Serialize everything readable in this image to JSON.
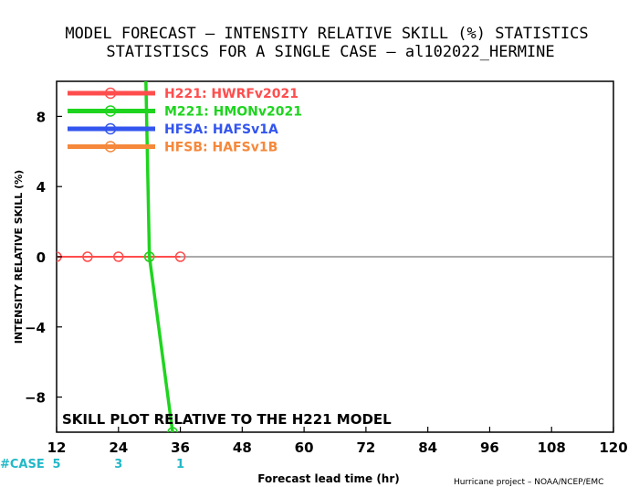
{
  "chart_data": {
    "type": "line",
    "title": "MODEL FORECAST – INTENSITY RELATIVE SKILL (%) STATISTICS",
    "subtitle": "STATISTISCS FOR A SINGLE CASE – al102022_HERMINE",
    "xlabel": "Forecast lead time (hr)",
    "ylabel": "INTENSITY RELATIVE SKILL (%)",
    "xlim": [
      12,
      120
    ],
    "ylim": [
      -10,
      10
    ],
    "x_ticks": [
      12,
      24,
      36,
      48,
      60,
      72,
      84,
      96,
      108,
      120
    ],
    "y_ticks": [
      -8,
      -4,
      0,
      4,
      8
    ],
    "y_tick_labels": [
      "−8",
      "−4",
      "0",
      "4",
      "8"
    ],
    "grid": false,
    "legend_position": "top-left",
    "series": [
      {
        "name": "H221: HWRFv2021",
        "color": "#ff4d4d",
        "x": [
          12,
          18,
          24,
          30,
          36
        ],
        "y": [
          0,
          0,
          0,
          0,
          0
        ],
        "markers": true
      },
      {
        "name": "M221: HMONv2021",
        "color": "#1fd41f",
        "x": [
          29.3,
          30,
          34.5
        ],
        "y": [
          10.3,
          0,
          -10
        ],
        "markers": true
      },
      {
        "name": "HFSA: HAFSv1A",
        "color": "#3355ee",
        "x": [],
        "y": [],
        "markers": true
      },
      {
        "name": "HFSB: HAFSv1B",
        "color": "#f5883a",
        "x": [],
        "y": [],
        "markers": true
      }
    ],
    "annotation": "SKILL PLOT RELATIVE TO THE H221 MODEL",
    "case_counts": {
      "label": "#CASE",
      "color": "#22b8c8",
      "x": [
        12,
        24,
        36
      ],
      "counts": [
        "5",
        "3",
        "1"
      ]
    },
    "credit": "Hurricane project – NOAA/NCEP/EMC"
  }
}
